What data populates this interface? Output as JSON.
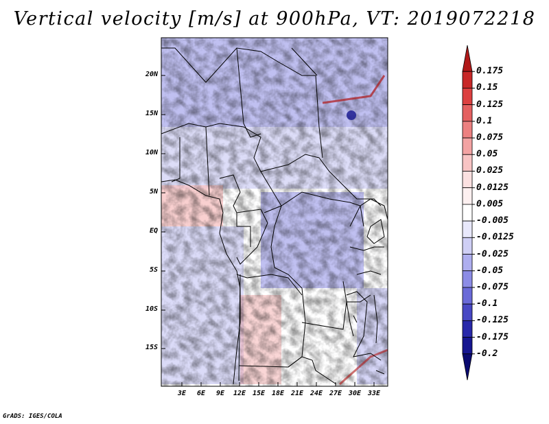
{
  "title": "Vertical velocity [m/s] at 900hPa, VT: 2019072218",
  "footer": "GrADS: IGES/COLA",
  "map": {
    "lat_labels": [
      "20N",
      "15N",
      "10N",
      "5N",
      "EQ",
      "5S",
      "10S",
      "15S"
    ],
    "lon_labels": [
      "3E",
      "6E",
      "9E",
      "12E",
      "15E",
      "18E",
      "21E",
      "24E",
      "27E",
      "30E",
      "33E"
    ],
    "lon_range": [
      0,
      35
    ],
    "lat_range": [
      -20,
      24.5
    ]
  },
  "colorbar": {
    "labels": [
      "0.175",
      "0.15",
      "0.125",
      "0.1",
      "0.075",
      "0.05",
      "0.025",
      "0.0125",
      "0.005",
      "-0.005",
      "-0.0125",
      "-0.025",
      "-0.05",
      "-0.075",
      "-0.1",
      "-0.125",
      "-0.175",
      "-0.2"
    ],
    "colors": [
      "#b01818",
      "#c82828",
      "#dc4040",
      "#e46060",
      "#ec8080",
      "#f3a3a3",
      "#f8c4c4",
      "#fbe0e0",
      "#fdf0f0",
      "#ffffff",
      "#e8e8fb",
      "#cfcff5",
      "#aeaeef",
      "#8c8ce6",
      "#6a6ad8",
      "#4848c4",
      "#2828aa",
      "#161690",
      "#0a0a70"
    ]
  }
}
